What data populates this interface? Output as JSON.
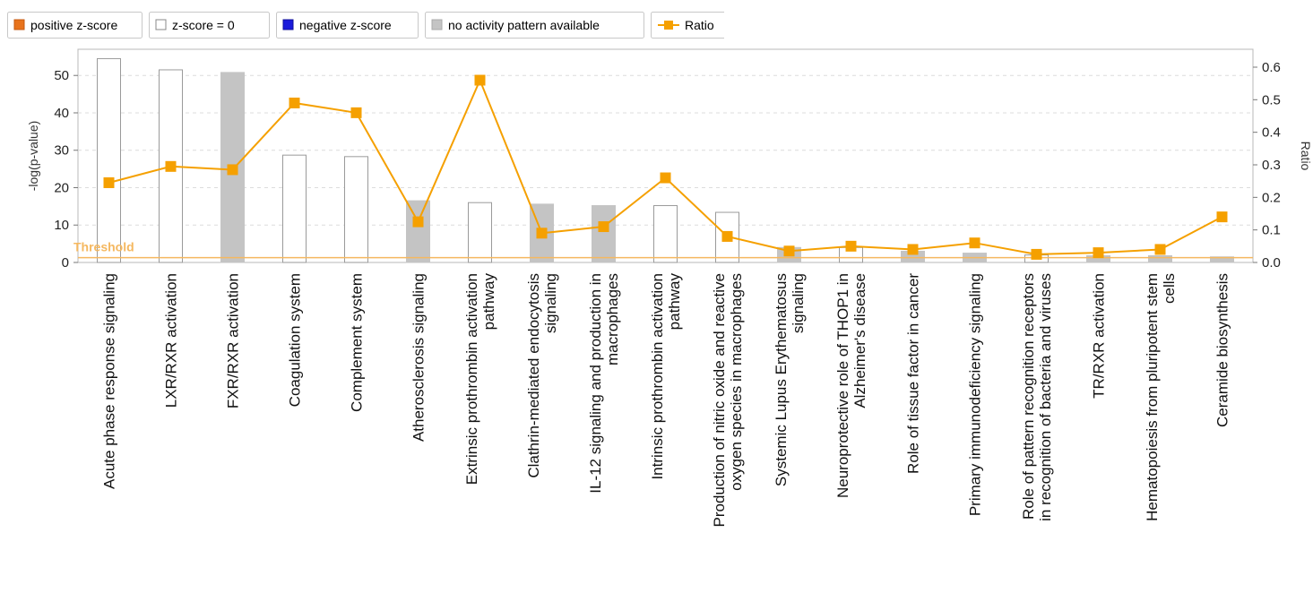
{
  "legend": [
    {
      "label": "positive z-score",
      "kind": "swatch",
      "fill": "#e8731c",
      "stroke": "#c45a10"
    },
    {
      "label": "z-score = 0",
      "kind": "swatch",
      "fill": "#ffffff",
      "stroke": "#888888"
    },
    {
      "label": "negative z-score",
      "kind": "swatch",
      "fill": "#1a1adb",
      "stroke": "#10109a"
    },
    {
      "label": "no activity pattern available",
      "kind": "swatch",
      "fill": "#c4c4c4",
      "stroke": "#aaaaaa"
    },
    {
      "label": "Ratio",
      "kind": "line",
      "fill": "#f5a000",
      "stroke": "#f5a000"
    }
  ],
  "chart_data": {
    "type": "bar",
    "ylabel": "-log(p-value)",
    "y2label": "Ratio",
    "ylim": [
      0,
      57
    ],
    "y2lim": [
      0,
      0.655
    ],
    "yticks": [
      0,
      10,
      20,
      30,
      40,
      50
    ],
    "y2ticks": [
      0.0,
      0.1,
      0.2,
      0.3,
      0.4,
      0.5,
      0.6
    ],
    "threshold": {
      "label": "Threshold",
      "value": 1.3
    },
    "grid": true,
    "colors": {
      "zero": "#ffffff",
      "no_pattern": "#c4c4c4",
      "ratio": "#f5a000",
      "threshold": "#f5b860"
    },
    "categories": [
      [
        "Acute phase response signaling"
      ],
      [
        "LXR/RXR activation"
      ],
      [
        "FXR/RXR activation"
      ],
      [
        "Coagulation system"
      ],
      [
        "Complement system"
      ],
      [
        "Atherosclerosis signaling"
      ],
      [
        "Extrinsic prothrombin activation",
        "pathway"
      ],
      [
        "Clathrin-mediated endocytosis",
        "signaling"
      ],
      [
        "IL-12 signaling and production in",
        "macrophages"
      ],
      [
        "Intrinsic prothrombin activation",
        "pathway"
      ],
      [
        "Production of nitric oxide and reactive",
        "oxygen species in macrophages"
      ],
      [
        "Systemic Lupus Erythematosus",
        "signaling"
      ],
      [
        "Neuroprotective role of THOP1 in",
        "Alzheimer's disease"
      ],
      [
        "Role of tissue factor in cancer"
      ],
      [
        "Primary immunodeficiency signaling"
      ],
      [
        "Role of pattern recognition receptors",
        "in recognition of bacteria and viruses"
      ],
      [
        "TR/RXR activation"
      ],
      [
        "Hematopoiesis from pluripotent stem",
        "cells"
      ],
      [
        "Ceramide biosynthesis"
      ]
    ],
    "series": [
      {
        "kind": "bar",
        "values": [
          54.5,
          51.5,
          50.8,
          28.7,
          28.3,
          16.5,
          16.0,
          15.6,
          15.2,
          15.2,
          13.4,
          4.0,
          4.0,
          3.0,
          2.5,
          2.0,
          1.8,
          1.8,
          1.5
        ],
        "pattern": [
          "zero",
          "zero",
          "none",
          "zero",
          "zero",
          "none",
          "zero",
          "none",
          "none",
          "zero",
          "zero",
          "none",
          "zero",
          "none",
          "none",
          "zero",
          "none",
          "none",
          "none"
        ]
      },
      {
        "kind": "line",
        "values": [
          0.245,
          0.295,
          0.285,
          0.49,
          0.46,
          0.125,
          0.56,
          0.09,
          0.11,
          0.26,
          0.08,
          0.035,
          0.05,
          0.04,
          0.06,
          0.025,
          0.03,
          0.04,
          0.14
        ]
      }
    ]
  }
}
